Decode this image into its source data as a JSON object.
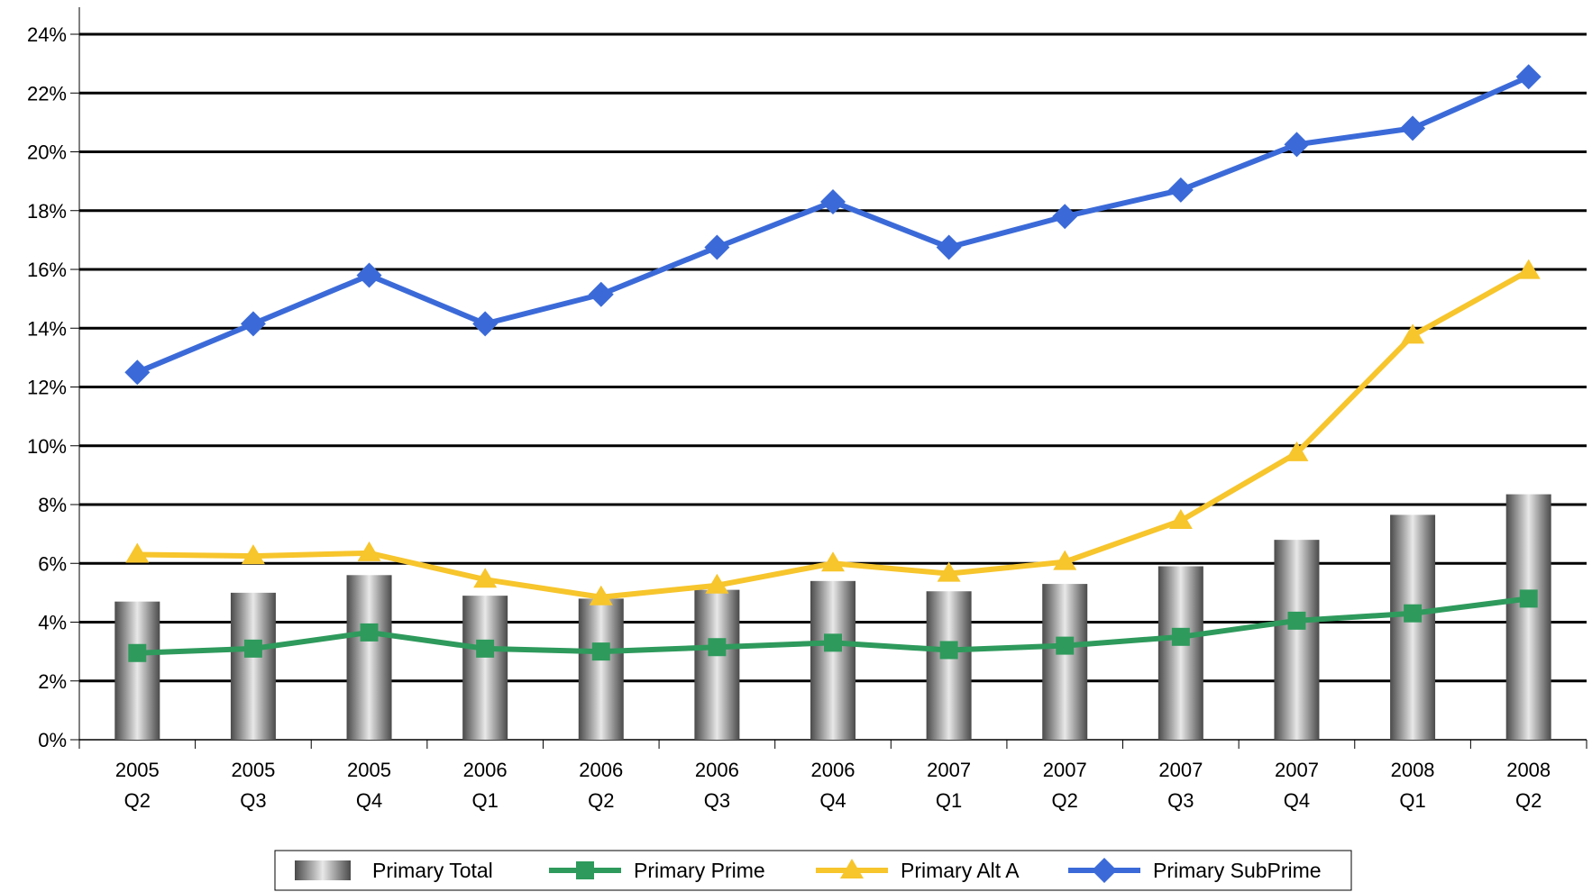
{
  "chart_data": {
    "type": "bar",
    "title": "",
    "xlabel": "",
    "ylabel": "",
    "categories": [
      [
        "2005",
        "Q2"
      ],
      [
        "2005",
        "Q3"
      ],
      [
        "2005",
        "Q4"
      ],
      [
        "2006",
        "Q1"
      ],
      [
        "2006",
        "Q2"
      ],
      [
        "2006",
        "Q3"
      ],
      [
        "2006",
        "Q4"
      ],
      [
        "2007",
        "Q1"
      ],
      [
        "2007",
        "Q2"
      ],
      [
        "2007",
        "Q3"
      ],
      [
        "2007",
        "Q4"
      ],
      [
        "2008",
        "Q1"
      ],
      [
        "2008",
        "Q2"
      ]
    ],
    "ylim": [
      0,
      24
    ],
    "yticks": [
      "0%",
      "2%",
      "4%",
      "6%",
      "8%",
      "10%",
      "12%",
      "14%",
      "16%",
      "18%",
      "20%",
      "22%",
      "24%"
    ],
    "grid": true,
    "legend_position": "bottom",
    "series": [
      {
        "name": "Primary Total",
        "kind": "bar",
        "color": "#8c8c8c",
        "values": [
          4.7,
          5.0,
          5.6,
          4.9,
          4.8,
          5.1,
          5.4,
          5.05,
          5.3,
          5.9,
          6.8,
          7.65,
          8.35
        ]
      },
      {
        "name": "Primary Prime",
        "kind": "line",
        "marker": "square",
        "color": "#2e9a5c",
        "values": [
          2.95,
          3.1,
          3.65,
          3.1,
          3.0,
          3.15,
          3.3,
          3.05,
          3.2,
          3.5,
          4.05,
          4.3,
          4.8
        ]
      },
      {
        "name": "Primary Alt A",
        "kind": "line",
        "marker": "triangle",
        "color": "#f7c52c",
        "values": [
          6.3,
          6.25,
          6.35,
          5.45,
          4.85,
          5.25,
          6.0,
          5.65,
          6.05,
          7.45,
          9.75,
          13.75,
          15.95
        ]
      },
      {
        "name": "Primary SubPrime",
        "kind": "line",
        "marker": "diamond",
        "color": "#3b6ad8",
        "values": [
          12.5,
          14.15,
          15.8,
          14.15,
          15.15,
          16.75,
          18.3,
          16.75,
          17.8,
          18.7,
          20.25,
          20.8,
          22.55
        ]
      }
    ]
  }
}
